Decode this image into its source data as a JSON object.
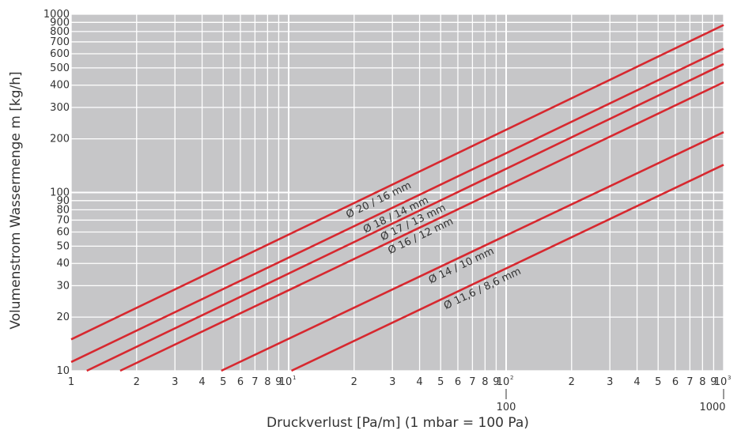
{
  "chart_data": {
    "type": "line",
    "xscale": "log",
    "yscale": "log",
    "xlim": [
      1,
      1000
    ],
    "ylim": [
      10,
      1000
    ],
    "grid": true,
    "xlabel": "Druckverlust [Pa/m] (1 mbar = 100 Pa)",
    "ylabel": "Volumenstrom  Wassermenge m [kg/h]",
    "x_ticks": [
      {
        "v": 1,
        "t": "1"
      },
      {
        "v": 2,
        "t": "2"
      },
      {
        "v": 3,
        "t": "3"
      },
      {
        "v": 4,
        "t": "4"
      },
      {
        "v": 5,
        "t": "5"
      },
      {
        "v": 6,
        "t": "6"
      },
      {
        "v": 7,
        "t": "7"
      },
      {
        "v": 8,
        "t": "8"
      },
      {
        "v": 9,
        "t": "9"
      },
      {
        "v": 10,
        "t": "10",
        "sup": "1"
      },
      {
        "v": 20,
        "t": "2"
      },
      {
        "v": 30,
        "t": "3"
      },
      {
        "v": 40,
        "t": "4"
      },
      {
        "v": 50,
        "t": "5"
      },
      {
        "v": 60,
        "t": "6"
      },
      {
        "v": 70,
        "t": "7"
      },
      {
        "v": 80,
        "t": "8"
      },
      {
        "v": 90,
        "t": "9"
      },
      {
        "v": 100,
        "t": "10",
        "sup": "2"
      },
      {
        "v": 200,
        "t": "2"
      },
      {
        "v": 300,
        "t": "3"
      },
      {
        "v": 400,
        "t": "4"
      },
      {
        "v": 500,
        "t": "5"
      },
      {
        "v": 600,
        "t": "6"
      },
      {
        "v": 700,
        "t": "7"
      },
      {
        "v": 800,
        "t": "8"
      },
      {
        "v": 900,
        "t": "9"
      },
      {
        "v": 1000,
        "t": "10",
        "sup": "3"
      }
    ],
    "x_ticks_secondary": [
      {
        "v": 100,
        "t": "100"
      },
      {
        "v": 1000,
        "t": "1000"
      }
    ],
    "y_ticks": [
      {
        "v": 10,
        "t": "10"
      },
      {
        "v": 20,
        "t": "20"
      },
      {
        "v": 30,
        "t": "30"
      },
      {
        "v": 40,
        "t": "40"
      },
      {
        "v": 50,
        "t": "50"
      },
      {
        "v": 60,
        "t": "60"
      },
      {
        "v": 70,
        "t": "70"
      },
      {
        "v": 80,
        "t": "80"
      },
      {
        "v": 90,
        "t": "90"
      },
      {
        "v": 100,
        "t": "100"
      },
      {
        "v": 200,
        "t": "200"
      },
      {
        "v": 300,
        "t": "300"
      },
      {
        "v": 400,
        "t": "400"
      },
      {
        "v": 500,
        "t": "500"
      },
      {
        "v": 600,
        "t": "600"
      },
      {
        "v": 700,
        "t": "700"
      },
      {
        "v": 800,
        "t": "800"
      },
      {
        "v": 900,
        "t": "900"
      },
      {
        "v": 1000,
        "t": "1000"
      }
    ],
    "series": [
      {
        "name": "Ø 20 / 16 mm",
        "x": [
          1,
          1000
        ],
        "y": [
          15,
          870
        ],
        "label_at": 25
      },
      {
        "name": "Ø 18 / 14 mm",
        "x": [
          1,
          1000
        ],
        "y": [
          11.2,
          640
        ],
        "label_at": 30
      },
      {
        "name": "Ø 17 / 13 mm",
        "x": [
          1.18,
          1000
        ],
        "y": [
          10,
          525
        ],
        "label_at": 36
      },
      {
        "name": "Ø 16 / 12 mm",
        "x": [
          1.68,
          1000
        ],
        "y": [
          10,
          415
        ],
        "label_at": 39
      },
      {
        "name": "Ø 14 / 10 mm",
        "x": [
          4.9,
          1000
        ],
        "y": [
          10,
          218
        ],
        "label_at": 60
      },
      {
        "name": "Ø 11,6 / 8,6 mm",
        "x": [
          10.3,
          1000
        ],
        "y": [
          10,
          143
        ],
        "label_at": 75
      }
    ],
    "colors": {
      "plot_bg": "#c6c6c8",
      "grid": "#ffffff",
      "line": "#d7282f",
      "text": "#333333"
    }
  }
}
